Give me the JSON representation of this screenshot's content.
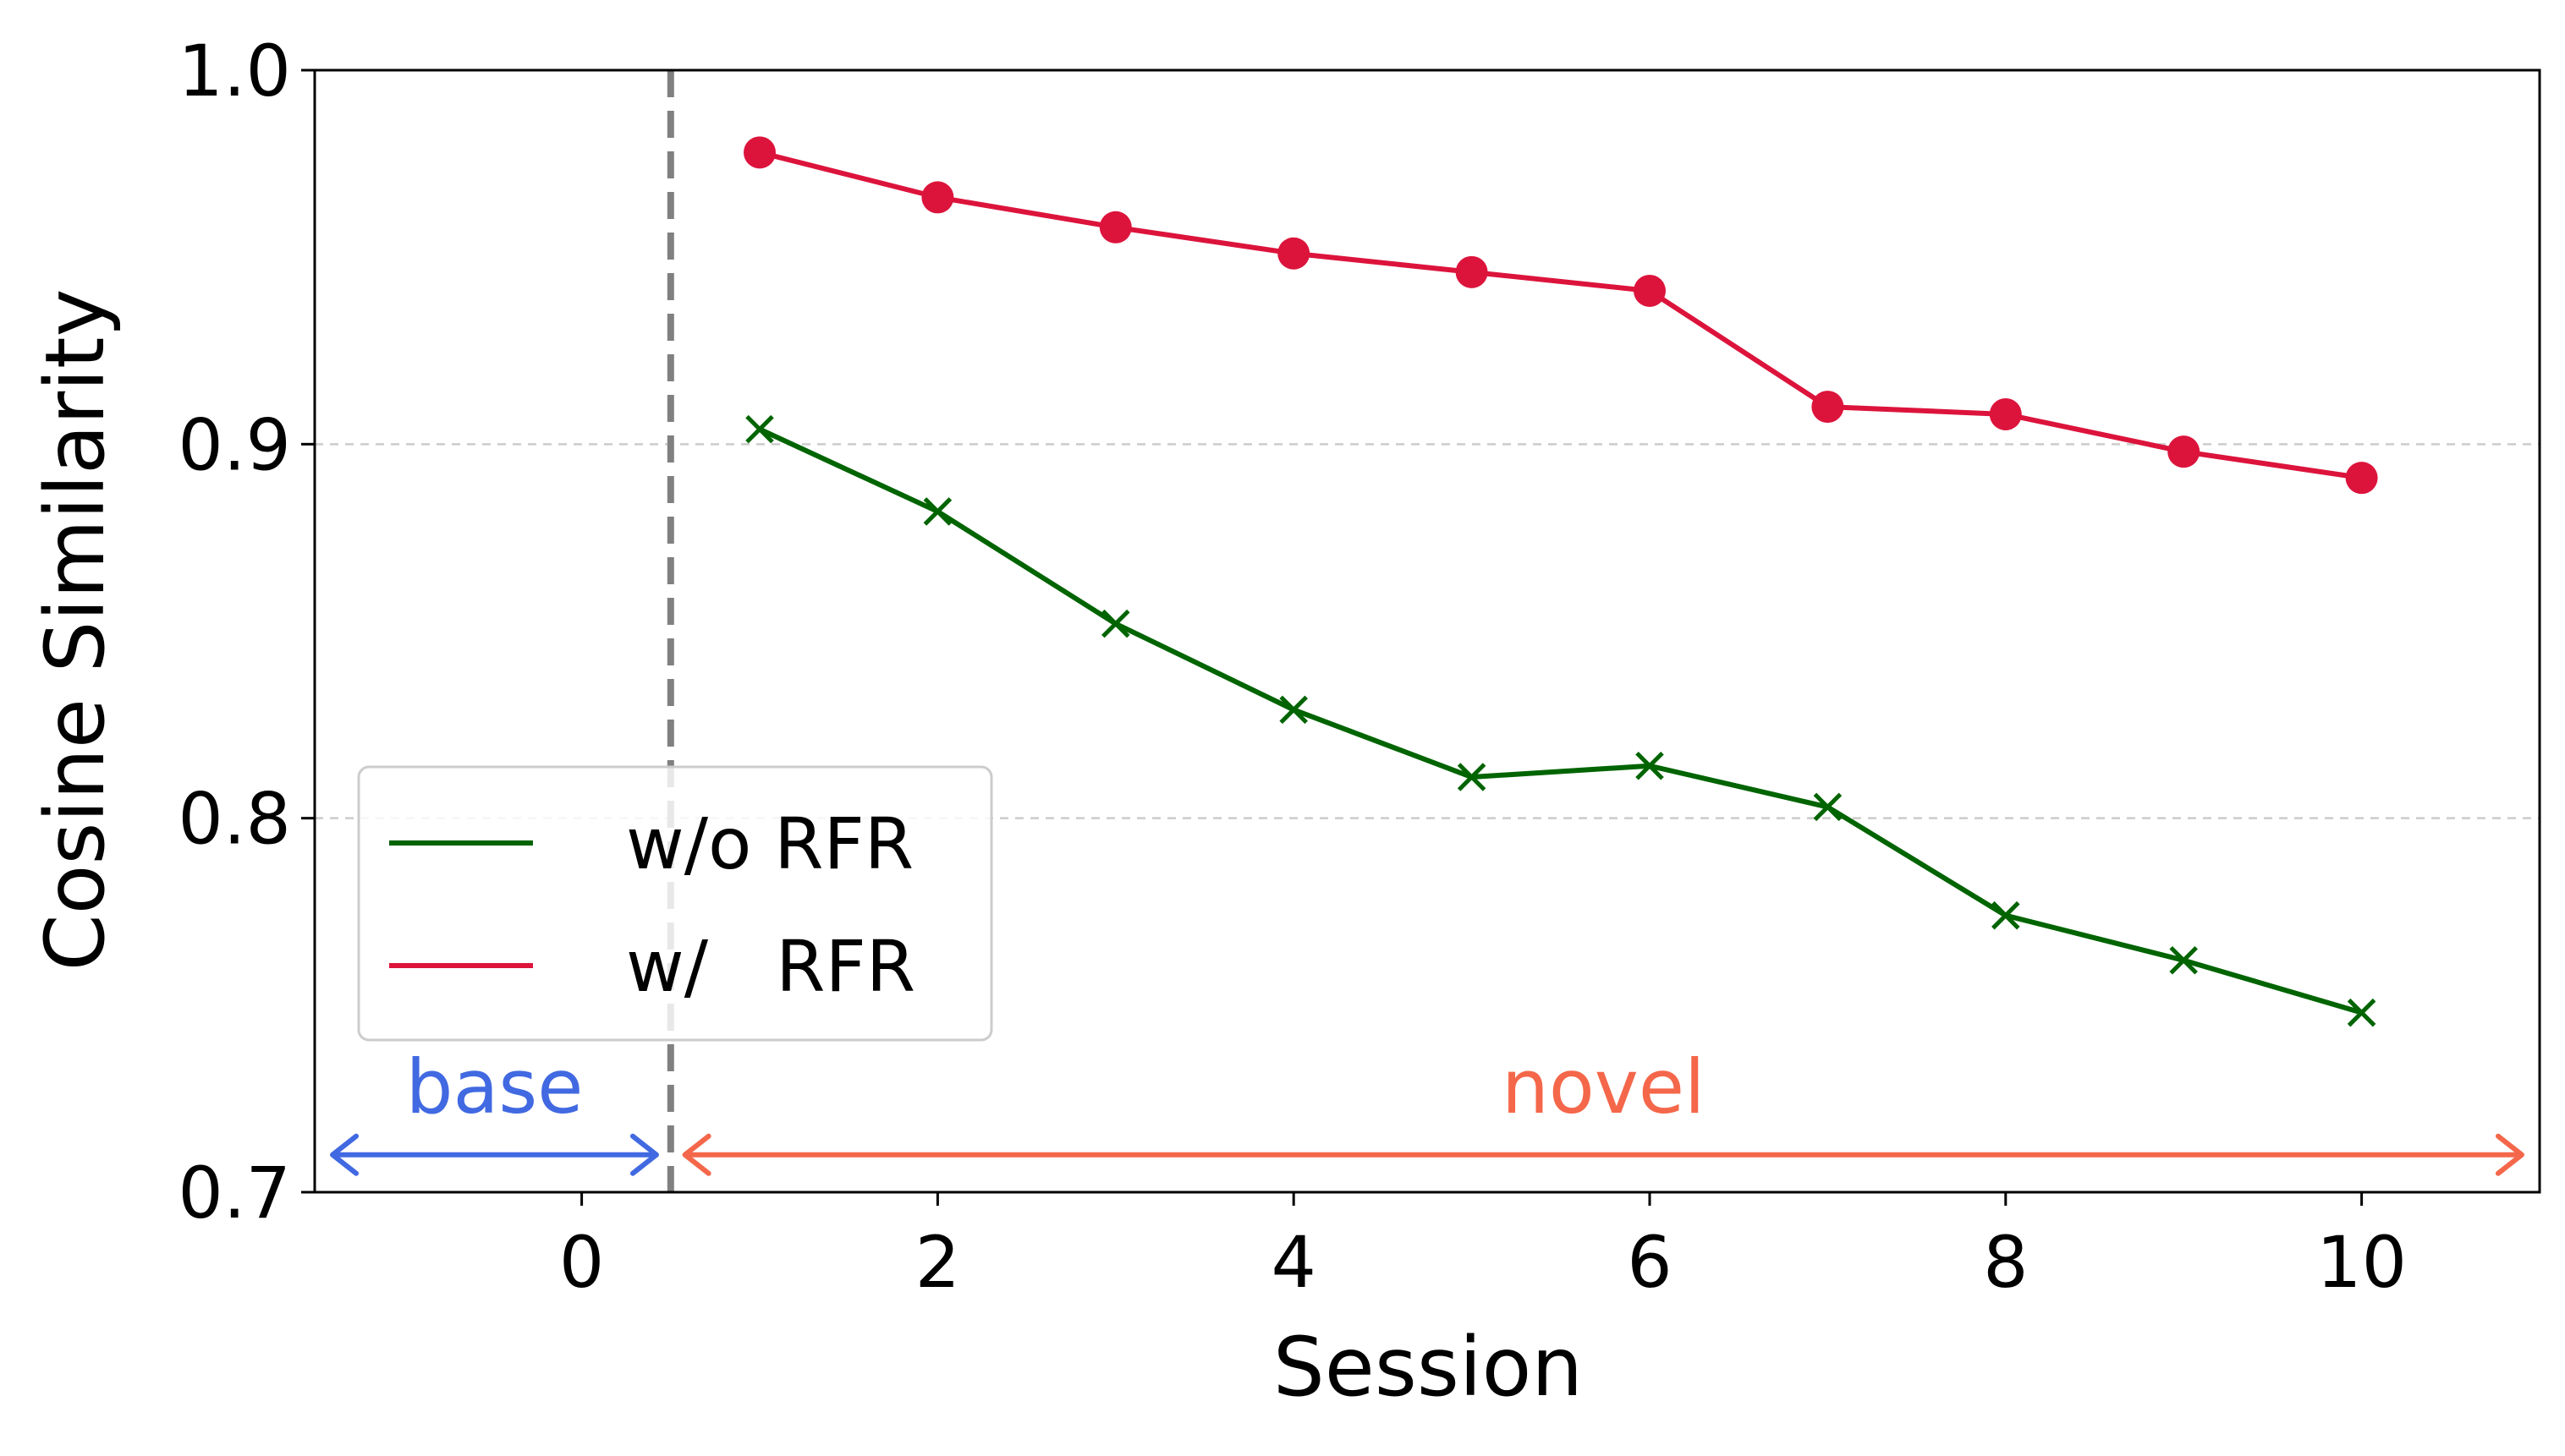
{
  "chart_data": {
    "type": "line",
    "xlabel": "Session",
    "ylabel": "Cosine Similarity",
    "xlim": [
      -1.5,
      11.0
    ],
    "ylim": [
      0.7,
      1.0
    ],
    "x_ticks": [
      0,
      2,
      4,
      6,
      8,
      10
    ],
    "y_ticks": [
      0.7,
      0.8,
      0.9,
      1.0
    ],
    "y_tick_labels": [
      "0.7",
      "0.8",
      "0.9",
      "1.0"
    ],
    "grid": "horizontal dashed",
    "legend_position": "lower-left",
    "series": [
      {
        "name": "w/o RFR",
        "color": "#006400",
        "marker": "x",
        "x": [
          1,
          2,
          3,
          4,
          5,
          6,
          7,
          8,
          9,
          10
        ],
        "values": [
          0.904,
          0.882,
          0.852,
          0.829,
          0.811,
          0.814,
          0.803,
          0.774,
          0.762,
          0.748
        ]
      },
      {
        "name": "w/   RFR",
        "color": "#dc143c",
        "marker": "o",
        "x": [
          1,
          2,
          3,
          4,
          5,
          6,
          7,
          8,
          9,
          10
        ],
        "values": [
          0.978,
          0.966,
          0.958,
          0.951,
          0.946,
          0.941,
          0.91,
          0.908,
          0.898,
          0.891
        ]
      }
    ],
    "divider": {
      "x": 0.5,
      "style": "dashed",
      "color": "#808080"
    },
    "annotations": [
      {
        "text": "base",
        "color": "#4169e1",
        "x_from": -1.4,
        "x_to": 0.42,
        "y": 0.71
      },
      {
        "text": "novel",
        "color": "#f4674a",
        "x_from": 0.58,
        "x_to": 10.9,
        "y": 0.71
      }
    ]
  }
}
